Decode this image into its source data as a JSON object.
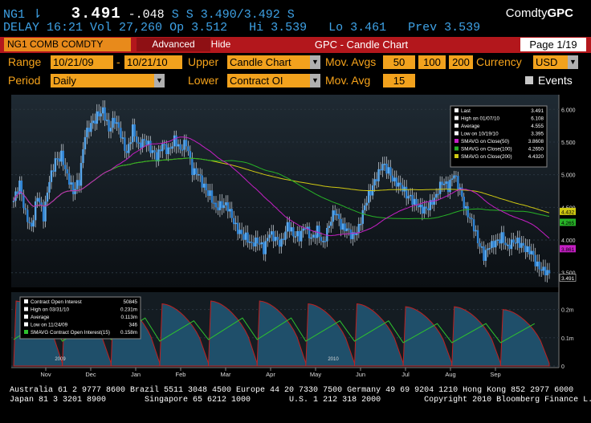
{
  "quote": {
    "ticker": "NG1",
    "arrow": "⇂",
    "last": "3.491",
    "change": "-.048",
    "bid_ask": "S S 3.490/3.492 S",
    "delay": "DELAY 16:21",
    "vol": "Vol 27,260",
    "op": "Op 3.512",
    "hi": "Hi 3.539",
    "lo": "Lo 3.461",
    "prev": "Prev 3.539",
    "brand_prefix": "Comdty",
    "brand_code": "GPC"
  },
  "titlebar": {
    "security": "NG1 COMB COMDTY",
    "advanced_label": "Advanced",
    "hide_label": "Hide",
    "title": "GPC - Candle Chart",
    "page": "Page 1/19"
  },
  "params": {
    "range_label": "Range",
    "range_from": "10/21/09",
    "range_dash": "-",
    "range_to": "10/21/10",
    "upper_label": "Upper",
    "upper_value": "Candle Chart",
    "movavgs_label": "Mov. Avgs",
    "ma1": "50",
    "ma2": "100",
    "ma3": "200",
    "currency_label": "Currency",
    "currency_value": "USD",
    "period_label": "Period",
    "period_value": "Daily",
    "lower_label": "Lower",
    "lower_value": "Contract OI",
    "movavg_label": "Mov. Avg",
    "movavg_value": "15",
    "events_label": "Events"
  },
  "colors": {
    "price": "#2f84d6",
    "sma50": "#c51fc4",
    "sma100": "#27b327",
    "sma200": "#cfc812",
    "oi_fill": "#1f4f6a",
    "oi_line": "#c02020",
    "oi_sma": "#2ec22e"
  },
  "chart_data": [
    {
      "type": "candlestick",
      "series_name": "NG1 COMB COMDTY",
      "x_ticks": [
        "Nov",
        "Dec",
        "Jan",
        "Feb",
        "Mar",
        "Apr",
        "May",
        "Jun",
        "Jul",
        "Aug",
        "Sep"
      ],
      "year_ticks": [
        "2009",
        "2010"
      ],
      "y_ticks": [
        "6.000",
        "5.500",
        "5.000",
        "4.500",
        "4.000",
        "3.500"
      ],
      "ylim": [
        3.3,
        6.2
      ],
      "current_label": "3.491",
      "ma_labels": [
        {
          "value": "4.432",
          "color": "#cfc812"
        },
        {
          "value": "4.265",
          "color": "#27b327"
        },
        {
          "value": "3.861",
          "color": "#c51fc4"
        }
      ],
      "close_series": [
        4.6,
        4.85,
        4.4,
        4.2,
        4.7,
        4.35,
        4.9,
        5.2,
        5.3,
        5.0,
        4.75,
        4.9,
        5.6,
        5.75,
        5.9,
        6.0,
        5.7,
        5.85,
        5.6,
        5.3,
        5.7,
        5.45,
        5.55,
        5.4,
        5.25,
        5.45,
        5.35,
        5.55,
        5.4,
        5.5,
        5.05,
        5.0,
        4.8,
        4.7,
        4.5,
        4.55,
        4.5,
        4.25,
        4.1,
        4.05,
        3.95,
        4.0,
        3.85,
        4.1,
        4.0,
        3.95,
        4.25,
        4.1,
        4.05,
        4.2,
        4.0,
        4.15,
        3.95,
        4.25,
        4.45,
        4.2,
        4.15,
        4.05,
        4.2,
        4.55,
        4.75,
        4.95,
        5.15,
        5.05,
        4.9,
        4.85,
        4.7,
        4.6,
        4.5,
        4.45,
        4.55,
        4.7,
        4.9,
        4.8,
        5.0,
        4.75,
        4.45,
        4.3,
        4.0,
        3.75,
        3.9,
        3.95,
        4.05,
        3.9,
        4.0,
        3.95,
        3.85,
        3.8,
        3.6,
        3.55,
        3.49
      ],
      "legend": [
        {
          "label": "Last",
          "value": "3.491"
        },
        {
          "label": "High on 01/07/10",
          "value": "6.108"
        },
        {
          "label": "Average",
          "value": "4.555"
        },
        {
          "label": "Low on 10/19/10",
          "value": "3.395"
        },
        {
          "label": "SMAVG on Close(50)",
          "value": "3.8608"
        },
        {
          "label": "SMAVG on Close(100)",
          "value": "4.2650"
        },
        {
          "label": "SMAVG on Close(200)",
          "value": "4.4320"
        }
      ]
    },
    {
      "type": "area",
      "series_name": "Contract Open Interest",
      "y_ticks": [
        "0.2m",
        "0.1m",
        "0"
      ],
      "ylim": [
        0,
        0.25
      ],
      "legend": [
        {
          "label": "Contract Open Interest",
          "value": "50845"
        },
        {
          "label": "High on 03/31/10",
          "value": "0.231m"
        },
        {
          "label": "Average",
          "value": "0.113m"
        },
        {
          "label": "Low on 11/24/09",
          "value": "346"
        },
        {
          "label": "SMAVG Contract Open Interest(15)",
          "value": "0.158m"
        }
      ],
      "cycles": [
        {
          "peak": 0.23,
          "sma": 0.17
        },
        {
          "peak": 0.22,
          "sma": 0.16
        },
        {
          "peak": 0.23,
          "sma": 0.17
        },
        {
          "peak": 0.22,
          "sma": 0.16
        },
        {
          "peak": 0.23,
          "sma": 0.17
        },
        {
          "peak": 0.23,
          "sma": 0.17
        },
        {
          "peak": 0.22,
          "sma": 0.16
        },
        {
          "peak": 0.22,
          "sma": 0.16
        },
        {
          "peak": 0.21,
          "sma": 0.15
        },
        {
          "peak": 0.21,
          "sma": 0.15
        },
        {
          "peak": 0.2,
          "sma": 0.15
        }
      ]
    }
  ],
  "footer": {
    "line1": "Australia 61 2 9777 8600 Brazil 5511 3048 4500 Europe 44 20 7330 7500 Germany 49 69 9204 1210 Hong Kong 852 2977 6000",
    "line2": "Japan 81 3 3201 8900        Singapore 65 6212 1000        U.S. 1 212 318 2000         Copyright 2010 Bloomberg Finance L.P."
  }
}
